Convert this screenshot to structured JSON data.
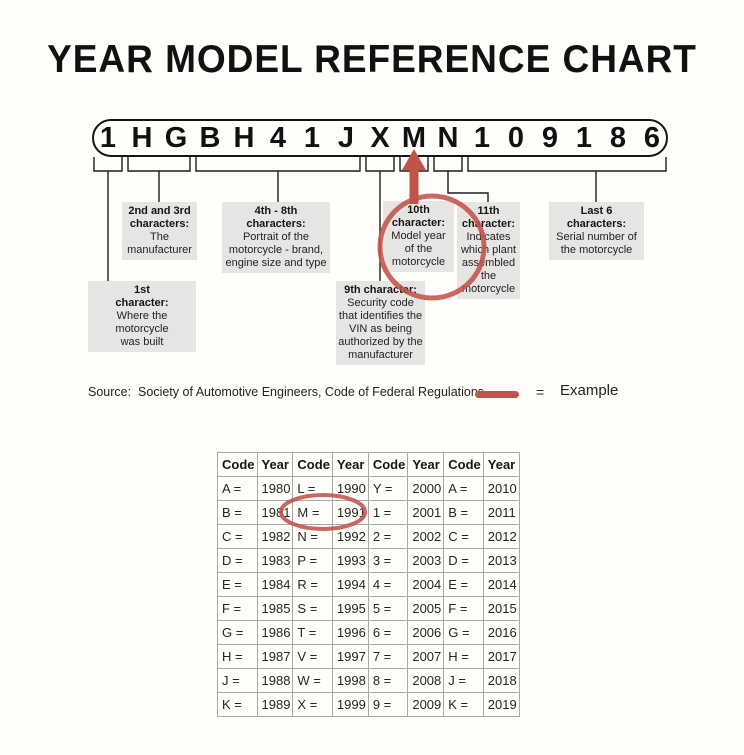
{
  "title": "YEAR MODEL REFERENCE CHART",
  "vin": {
    "characters": [
      "1",
      "H",
      "G",
      "B",
      "H",
      "4",
      "1",
      "J",
      "X",
      "M",
      "N",
      "1",
      "0",
      "9",
      "1",
      "8",
      "6"
    ]
  },
  "callouts": {
    "first": {
      "title": "1st\ncharacter:",
      "desc": "Where the\nmotorcycle\nwas built"
    },
    "second_third": {
      "title": "2nd and 3rd\ncharacters:",
      "desc": "The\nmanufacturer"
    },
    "fourth_eighth": {
      "title": "4th - 8th\ncharacters:",
      "desc": "Portrait of the\nmotorcycle - brand,\nengine size and type"
    },
    "ninth": {
      "title": "9th character:",
      "desc": "Security code\nthat identifies the\nVIN as being\nauthorized by the\nmanufacturer"
    },
    "tenth": {
      "title": "10th\ncharacter:",
      "desc": "Model year\nof the\nmotorcycle"
    },
    "eleventh": {
      "title": "11th\ncharacter:",
      "desc": "Indicates\nwhich plant\nassembled\nthe\nmotorcycle"
    },
    "last_six": {
      "title": "Last 6\ncharacters:",
      "desc": "Serial number of\nthe motorcycle"
    }
  },
  "source_line": {
    "label": "Source:  Society of Automotive Engineers, Code of Federal Regulations"
  },
  "legend": {
    "equals": "=",
    "example_label": "Example"
  },
  "annotations": {
    "circled_vin_position": "10th character M",
    "circled_table_cells": [
      "M =",
      "1991"
    ]
  },
  "colors": {
    "accent_red": "#c0534a",
    "box_gray": "#e6e5e3"
  },
  "table": {
    "headers": [
      "Code",
      "Year",
      "Code",
      "Year",
      "Code",
      "Year",
      "Code",
      "Year"
    ],
    "rows": [
      [
        "A =",
        "1980",
        "L =",
        "1990",
        "Y =",
        "2000",
        "A =",
        "2010"
      ],
      [
        "B =",
        "1981",
        "M =",
        "1991",
        "1 =",
        "2001",
        "B =",
        "2011"
      ],
      [
        "C =",
        "1982",
        "N =",
        "1992",
        "2 =",
        "2002",
        "C =",
        "2012"
      ],
      [
        "D =",
        "1983",
        "P =",
        "1993",
        "3 =",
        "2003",
        "D =",
        "2013"
      ],
      [
        "E =",
        "1984",
        "R =",
        "1994",
        "4 =",
        "2004",
        "E =",
        "2014"
      ],
      [
        "F =",
        "1985",
        "S =",
        "1995",
        "5 =",
        "2005",
        "F =",
        "2015"
      ],
      [
        "G =",
        "1986",
        "T =",
        "1996",
        "6 =",
        "2006",
        "G =",
        "2016"
      ],
      [
        "H =",
        "1987",
        "V =",
        "1997",
        "7 =",
        "2007",
        "H =",
        "2017"
      ],
      [
        "J =",
        "1988",
        "W =",
        "1998",
        "8 =",
        "2008",
        "J =",
        "2018"
      ],
      [
        "K =",
        "1989",
        "X =",
        "1999",
        "9 =",
        "2009",
        "K =",
        "2019"
      ]
    ]
  }
}
